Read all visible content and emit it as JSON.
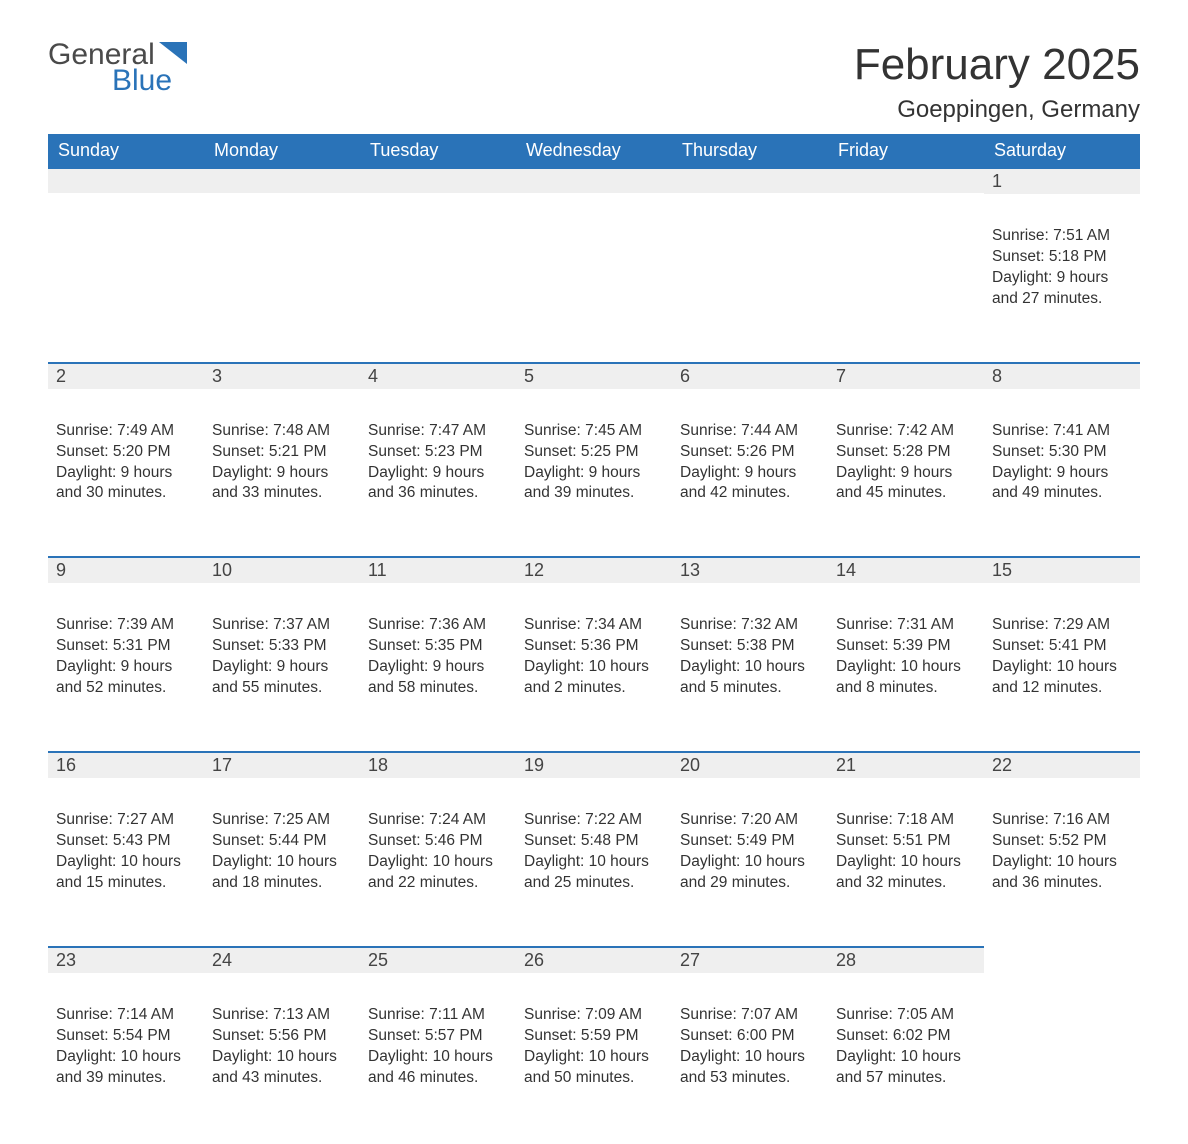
{
  "brand": {
    "general": "General",
    "blue": "Blue"
  },
  "title": "February 2025",
  "location": "Goeppingen, Germany",
  "colors": {
    "header_bg": "#2a73b8",
    "header_text": "#ffffff",
    "daynum_bg": "#efefef",
    "daynum_border": "#2a73b8",
    "text": "#333333",
    "background": "#ffffff"
  },
  "typography": {
    "title_fontsize": 44,
    "location_fontsize": 24,
    "weekday_fontsize": 18,
    "daynum_fontsize": 18,
    "body_fontsize": 15.5
  },
  "weekdays": [
    "Sunday",
    "Monday",
    "Tuesday",
    "Wednesday",
    "Thursday",
    "Friday",
    "Saturday"
  ],
  "layout": {
    "type": "calendar",
    "columns": 7,
    "rows": 5,
    "first_weekday_index": 6
  },
  "weeks": [
    [
      {
        "day": "",
        "sunrise": "",
        "sunset": "",
        "daylight": ""
      },
      {
        "day": "",
        "sunrise": "",
        "sunset": "",
        "daylight": ""
      },
      {
        "day": "",
        "sunrise": "",
        "sunset": "",
        "daylight": ""
      },
      {
        "day": "",
        "sunrise": "",
        "sunset": "",
        "daylight": ""
      },
      {
        "day": "",
        "sunrise": "",
        "sunset": "",
        "daylight": ""
      },
      {
        "day": "",
        "sunrise": "",
        "sunset": "",
        "daylight": ""
      },
      {
        "day": "1",
        "sunrise": "Sunrise: 7:51 AM",
        "sunset": "Sunset: 5:18 PM",
        "daylight": "Daylight: 9 hours and 27 minutes."
      }
    ],
    [
      {
        "day": "2",
        "sunrise": "Sunrise: 7:49 AM",
        "sunset": "Sunset: 5:20 PM",
        "daylight": "Daylight: 9 hours and 30 minutes."
      },
      {
        "day": "3",
        "sunrise": "Sunrise: 7:48 AM",
        "sunset": "Sunset: 5:21 PM",
        "daylight": "Daylight: 9 hours and 33 minutes."
      },
      {
        "day": "4",
        "sunrise": "Sunrise: 7:47 AM",
        "sunset": "Sunset: 5:23 PM",
        "daylight": "Daylight: 9 hours and 36 minutes."
      },
      {
        "day": "5",
        "sunrise": "Sunrise: 7:45 AM",
        "sunset": "Sunset: 5:25 PM",
        "daylight": "Daylight: 9 hours and 39 minutes."
      },
      {
        "day": "6",
        "sunrise": "Sunrise: 7:44 AM",
        "sunset": "Sunset: 5:26 PM",
        "daylight": "Daylight: 9 hours and 42 minutes."
      },
      {
        "day": "7",
        "sunrise": "Sunrise: 7:42 AM",
        "sunset": "Sunset: 5:28 PM",
        "daylight": "Daylight: 9 hours and 45 minutes."
      },
      {
        "day": "8",
        "sunrise": "Sunrise: 7:41 AM",
        "sunset": "Sunset: 5:30 PM",
        "daylight": "Daylight: 9 hours and 49 minutes."
      }
    ],
    [
      {
        "day": "9",
        "sunrise": "Sunrise: 7:39 AM",
        "sunset": "Sunset: 5:31 PM",
        "daylight": "Daylight: 9 hours and 52 minutes."
      },
      {
        "day": "10",
        "sunrise": "Sunrise: 7:37 AM",
        "sunset": "Sunset: 5:33 PM",
        "daylight": "Daylight: 9 hours and 55 minutes."
      },
      {
        "day": "11",
        "sunrise": "Sunrise: 7:36 AM",
        "sunset": "Sunset: 5:35 PM",
        "daylight": "Daylight: 9 hours and 58 minutes."
      },
      {
        "day": "12",
        "sunrise": "Sunrise: 7:34 AM",
        "sunset": "Sunset: 5:36 PM",
        "daylight": "Daylight: 10 hours and 2 minutes."
      },
      {
        "day": "13",
        "sunrise": "Sunrise: 7:32 AM",
        "sunset": "Sunset: 5:38 PM",
        "daylight": "Daylight: 10 hours and 5 minutes."
      },
      {
        "day": "14",
        "sunrise": "Sunrise: 7:31 AM",
        "sunset": "Sunset: 5:39 PM",
        "daylight": "Daylight: 10 hours and 8 minutes."
      },
      {
        "day": "15",
        "sunrise": "Sunrise: 7:29 AM",
        "sunset": "Sunset: 5:41 PM",
        "daylight": "Daylight: 10 hours and 12 minutes."
      }
    ],
    [
      {
        "day": "16",
        "sunrise": "Sunrise: 7:27 AM",
        "sunset": "Sunset: 5:43 PM",
        "daylight": "Daylight: 10 hours and 15 minutes."
      },
      {
        "day": "17",
        "sunrise": "Sunrise: 7:25 AM",
        "sunset": "Sunset: 5:44 PM",
        "daylight": "Daylight: 10 hours and 18 minutes."
      },
      {
        "day": "18",
        "sunrise": "Sunrise: 7:24 AM",
        "sunset": "Sunset: 5:46 PM",
        "daylight": "Daylight: 10 hours and 22 minutes."
      },
      {
        "day": "19",
        "sunrise": "Sunrise: 7:22 AM",
        "sunset": "Sunset: 5:48 PM",
        "daylight": "Daylight: 10 hours and 25 minutes."
      },
      {
        "day": "20",
        "sunrise": "Sunrise: 7:20 AM",
        "sunset": "Sunset: 5:49 PM",
        "daylight": "Daylight: 10 hours and 29 minutes."
      },
      {
        "day": "21",
        "sunrise": "Sunrise: 7:18 AM",
        "sunset": "Sunset: 5:51 PM",
        "daylight": "Daylight: 10 hours and 32 minutes."
      },
      {
        "day": "22",
        "sunrise": "Sunrise: 7:16 AM",
        "sunset": "Sunset: 5:52 PM",
        "daylight": "Daylight: 10 hours and 36 minutes."
      }
    ],
    [
      {
        "day": "23",
        "sunrise": "Sunrise: 7:14 AM",
        "sunset": "Sunset: 5:54 PM",
        "daylight": "Daylight: 10 hours and 39 minutes."
      },
      {
        "day": "24",
        "sunrise": "Sunrise: 7:13 AM",
        "sunset": "Sunset: 5:56 PM",
        "daylight": "Daylight: 10 hours and 43 minutes."
      },
      {
        "day": "25",
        "sunrise": "Sunrise: 7:11 AM",
        "sunset": "Sunset: 5:57 PM",
        "daylight": "Daylight: 10 hours and 46 minutes."
      },
      {
        "day": "26",
        "sunrise": "Sunrise: 7:09 AM",
        "sunset": "Sunset: 5:59 PM",
        "daylight": "Daylight: 10 hours and 50 minutes."
      },
      {
        "day": "27",
        "sunrise": "Sunrise: 7:07 AM",
        "sunset": "Sunset: 6:00 PM",
        "daylight": "Daylight: 10 hours and 53 minutes."
      },
      {
        "day": "28",
        "sunrise": "Sunrise: 7:05 AM",
        "sunset": "Sunset: 6:02 PM",
        "daylight": "Daylight: 10 hours and 57 minutes."
      },
      {
        "day": "",
        "sunrise": "",
        "sunset": "",
        "daylight": ""
      }
    ]
  ]
}
